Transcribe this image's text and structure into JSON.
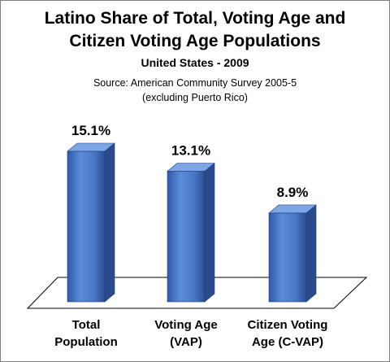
{
  "chart_data": {
    "type": "bar",
    "title_line1": "Latino Share of Total, Voting Age and",
    "title_line2": "Citizen Voting Age Populations",
    "subtitle": "United States - 2009",
    "source_line1": "Source: American Community Survey 2005-5",
    "source_line2": "(excluding Puerto Rico)",
    "categories": [
      [
        "Total",
        "Population"
      ],
      [
        "Voting Age",
        "(VAP)"
      ],
      [
        "Citizen Voting",
        "Age (C-VAP)"
      ]
    ],
    "values": [
      15.1,
      13.1,
      8.9
    ],
    "data_labels": [
      "15.1%",
      "13.1%",
      "8.9%"
    ],
    "ylim": [
      0,
      15.1
    ],
    "grid": false,
    "legend": "none",
    "bar_color": "#4472c4"
  }
}
